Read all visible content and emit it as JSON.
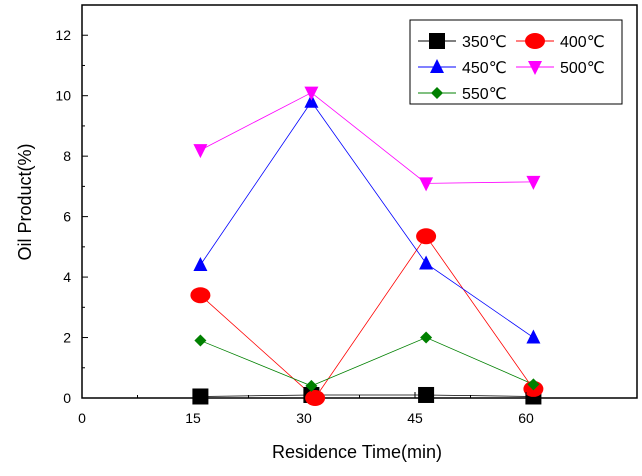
{
  "chart_data": {
    "type": "line",
    "title": "",
    "xlabel": "Residence Time(min)",
    "ylabel": "Oil Product(%)",
    "xlim": [
      0,
      75
    ],
    "ylim": [
      0,
      13
    ],
    "x_ticks": [
      0,
      15,
      30,
      45,
      60
    ],
    "y_ticks": [
      0,
      2,
      4,
      6,
      8,
      10,
      12
    ],
    "grid": false,
    "legend_position": "top-right",
    "series": [
      {
        "name": "350℃",
        "marker": "square",
        "color": "#000000",
        "x": [
          16,
          31,
          46.5,
          61
        ],
        "y": [
          0.05,
          0.1,
          0.1,
          0.05
        ]
      },
      {
        "name": "400℃",
        "marker": "circle",
        "color": "#ff0000",
        "x": [
          16,
          31.5,
          46.5,
          61
        ],
        "y": [
          3.4,
          0,
          5.35,
          0.3
        ]
      },
      {
        "name": "450℃",
        "marker": "triangle-up",
        "color": "#0000ff",
        "x": [
          16,
          31,
          46.5,
          61
        ],
        "y": [
          4.4,
          9.8,
          4.45,
          2.0
        ]
      },
      {
        "name": "500℃",
        "marker": "triangle-down",
        "color": "#ff00ff",
        "x": [
          16,
          31,
          46.5,
          61
        ],
        "y": [
          8.2,
          10.1,
          7.1,
          7.15
        ]
      },
      {
        "name": "550℃",
        "marker": "diamond",
        "color": "#008000",
        "x": [
          16,
          31,
          46.5,
          61
        ],
        "y": [
          1.9,
          0.4,
          2.0,
          0.45
        ]
      }
    ]
  }
}
